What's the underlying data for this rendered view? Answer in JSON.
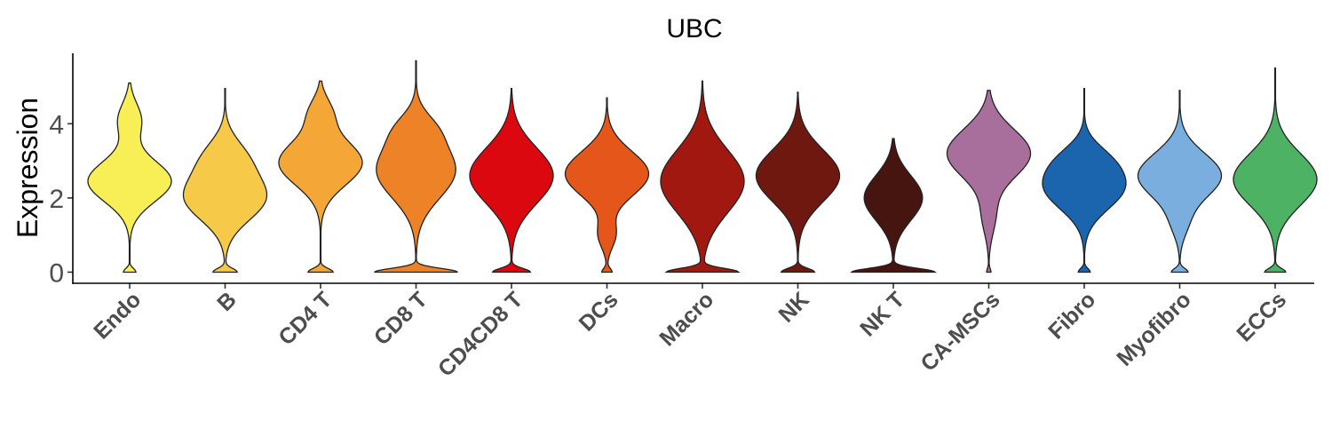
{
  "chart_data": {
    "type": "violin",
    "title": "UBC",
    "xlabel": "",
    "ylabel": "Expression",
    "ylim": [
      -0.3,
      5.9
    ],
    "yticks": [
      0,
      2,
      4
    ],
    "ytick_labels": [
      "0",
      "2",
      "4"
    ],
    "grid": false,
    "legend": "none",
    "categories": [
      "Endo",
      "B",
      "CD4 T",
      "CD8 T",
      "CD4CD8 T",
      "DCs",
      "Macro",
      "NK",
      "NK T",
      "CA-MSCs",
      "Fibro",
      "Myofibro",
      "ECCs"
    ],
    "colors": [
      "#F7EF55",
      "#F7C948",
      "#F4A636",
      "#EE8226",
      "#DC0810",
      "#E45619",
      "#A11811",
      "#6F1810",
      "#461510",
      "#A96F9C",
      "#1B65AF",
      "#7AAEDE",
      "#4DB264"
    ],
    "violins": [
      {
        "category": "Endo",
        "min": 0,
        "max": 5.1,
        "zero_width": 0.15,
        "modes": [
          [
            2.45,
            0.55,
            1.0
          ],
          [
            4.1,
            0.45,
            0.28
          ]
        ]
      },
      {
        "category": "B",
        "min": 0,
        "max": 4.95,
        "zero_width": 0.3,
        "modes": [
          [
            2.0,
            0.6,
            1.0
          ],
          [
            3.1,
            0.5,
            0.45
          ]
        ]
      },
      {
        "category": "CD4 T",
        "min": 0,
        "max": 5.15,
        "zero_width": 0.3,
        "modes": [
          [
            2.95,
            0.6,
            1.0
          ],
          [
            4.3,
            0.4,
            0.25
          ]
        ]
      },
      {
        "category": "CD8 T",
        "min": 0,
        "max": 5.7,
        "zero_width": 0.95,
        "modes": [
          [
            2.75,
            0.75,
            0.9
          ],
          [
            3.9,
            0.4,
            0.25
          ]
        ]
      },
      {
        "category": "CD4CD8 T",
        "min": 0,
        "max": 4.95,
        "zero_width": 0.45,
        "modes": [
          [
            2.6,
            0.75,
            1.0
          ]
        ]
      },
      {
        "category": "DCs",
        "min": 0,
        "max": 4.7,
        "zero_width": 0.12,
        "modes": [
          [
            2.65,
            0.6,
            1.0
          ],
          [
            1.0,
            0.35,
            0.2
          ]
        ]
      },
      {
        "category": "Macro",
        "min": 0,
        "max": 5.15,
        "zero_width": 0.85,
        "modes": [
          [
            2.45,
            0.85,
            1.0
          ]
        ]
      },
      {
        "category": "NK",
        "min": 0,
        "max": 4.85,
        "zero_width": 0.4,
        "modes": [
          [
            2.6,
            0.7,
            1.0
          ]
        ]
      },
      {
        "category": "NK T",
        "min": 0,
        "max": 3.6,
        "zero_width": 1.0,
        "modes": [
          [
            2.0,
            0.6,
            0.7
          ]
        ]
      },
      {
        "category": "CA-MSCs",
        "min": 0,
        "max": 4.9,
        "zero_width": 0.05,
        "modes": [
          [
            3.2,
            0.65,
            1.0
          ],
          [
            1.5,
            0.5,
            0.15
          ]
        ]
      },
      {
        "category": "Fibro",
        "min": 0,
        "max": 4.95,
        "zero_width": 0.15,
        "modes": [
          [
            2.3,
            0.6,
            1.0
          ],
          [
            3.1,
            0.4,
            0.3
          ]
        ]
      },
      {
        "category": "Myofibro",
        "min": 0,
        "max": 4.9,
        "zero_width": 0.2,
        "modes": [
          [
            2.6,
            0.6,
            1.0
          ],
          [
            1.3,
            0.4,
            0.15
          ]
        ]
      },
      {
        "category": "ECCs",
        "min": 0,
        "max": 5.5,
        "zero_width": 0.25,
        "modes": [
          [
            2.5,
            0.7,
            1.0
          ]
        ]
      }
    ]
  }
}
